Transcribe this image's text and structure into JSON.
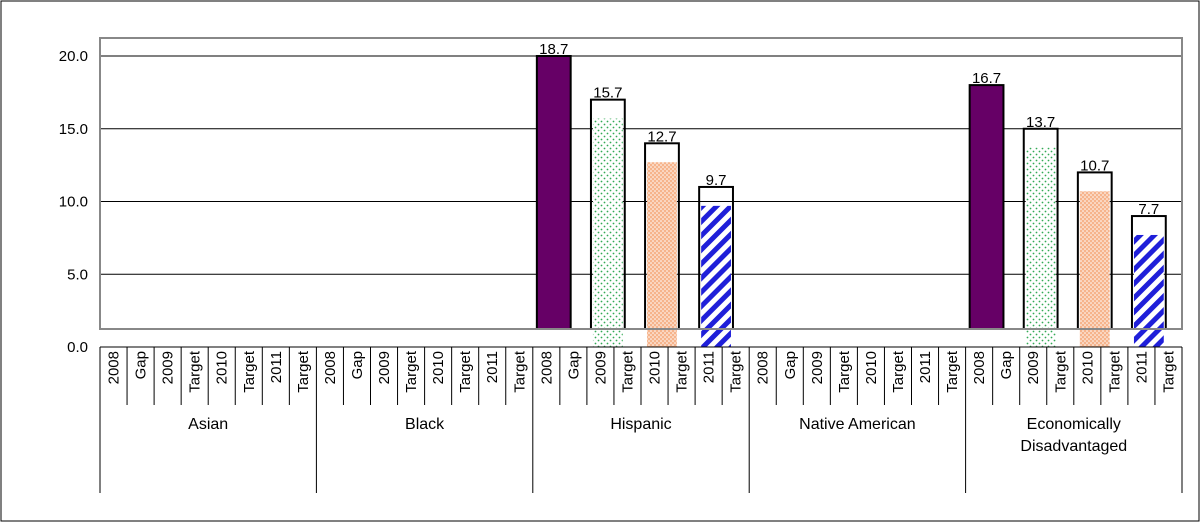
{
  "chart_data": {
    "type": "bar",
    "title": "",
    "xlabel": "",
    "ylabel": "",
    "ylim": [
      0,
      20
    ],
    "yticks": [
      "0.0",
      "5.0",
      "10.0",
      "15.0",
      "20.0"
    ],
    "grid": true,
    "groups": [
      {
        "name": "Asian",
        "categories": [
          "2008",
          "Gap",
          "2009",
          "Target",
          "2010",
          "Target",
          "2011",
          "Target"
        ],
        "bars": []
      },
      {
        "name": "Black",
        "categories": [
          "2008",
          "Gap",
          "2009",
          "Target",
          "2010",
          "Target",
          "2011",
          "Target"
        ],
        "bars": []
      },
      {
        "name": "Hispanic",
        "categories": [
          "2008",
          "Gap",
          "2009",
          "Target",
          "2010",
          "Target",
          "2011",
          "Target"
        ],
        "bars": [
          {
            "year": "2008",
            "gap": 18.7,
            "target_frame": 20.0,
            "label": "18.7",
            "pattern": "solid-purple"
          },
          {
            "year": "2009",
            "gap": 15.7,
            "target_frame": 17.0,
            "label": "15.7",
            "pattern": "green-dots"
          },
          {
            "year": "2010",
            "gap": 12.7,
            "target_frame": 14.0,
            "label": "12.7",
            "pattern": "orange-dots"
          },
          {
            "year": "2011",
            "gap": 9.7,
            "target_frame": 11.0,
            "label": "9.7",
            "pattern": "blue-stripes"
          }
        ]
      },
      {
        "name": "Native American",
        "categories": [
          "2008",
          "Gap",
          "2009",
          "Target",
          "2010",
          "Target",
          "2011",
          "Target"
        ],
        "bars": []
      },
      {
        "name": "Economically Disadvantaged",
        "name_lines": [
          "Economically",
          "Disadvantaged"
        ],
        "categories": [
          "2008",
          "Gap",
          "2009",
          "Target",
          "2010",
          "Target",
          "2011",
          "Target"
        ],
        "bars": [
          {
            "year": "2008",
            "gap": 16.7,
            "target_frame": 18.0,
            "label": "16.7",
            "pattern": "solid-purple"
          },
          {
            "year": "2009",
            "gap": 13.7,
            "target_frame": 15.0,
            "label": "13.7",
            "pattern": "green-dots"
          },
          {
            "year": "2010",
            "gap": 10.7,
            "target_frame": 12.0,
            "label": "10.7",
            "pattern": "orange-dots"
          },
          {
            "year": "2011",
            "gap": 7.7,
            "target_frame": 9.0,
            "label": "7.7",
            "pattern": "blue-stripes"
          }
        ]
      }
    ],
    "colors": {
      "solid-purple": "#660066",
      "green-dots": "#33aa55",
      "orange-dots": "#f4a070",
      "blue-stripes": "#1f1fd9",
      "grid": "#000000",
      "plot_border": "#888888"
    }
  }
}
